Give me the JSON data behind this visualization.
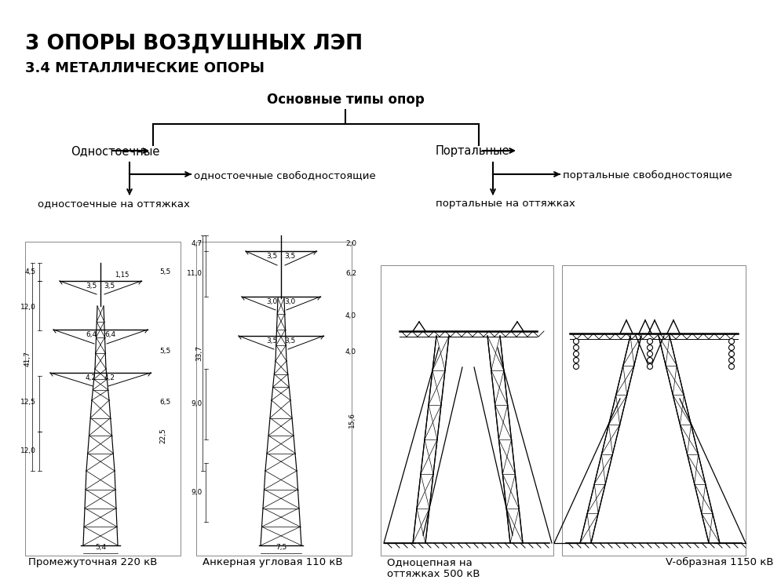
{
  "title1": "3 ОПОРЫ ВОЗДУШНЫХ ЛЭП",
  "title2": "3.4 МЕТАЛЛИЧЕСКИЕ ОПОРЫ",
  "center_label": "Основные типы опор",
  "left_type": "Одностоечные",
  "right_type": "Портальные",
  "left_sub1": "одностоечные свободностоящие",
  "left_sub2": "одностоечные на оттяжках",
  "right_sub1": "портальные свободностоящие",
  "right_sub2": "портальные на оттяжках",
  "caption1": "Промежуточная 220 кВ",
  "caption2": "Анкерная угловая 110 кВ",
  "caption3": "Одноцепная на\nоттяжках 500 кВ",
  "caption4": "V-образная 1150 кВ",
  "bg_color": "#ffffff",
  "line_color": "#000000",
  "text_color": "#000000"
}
